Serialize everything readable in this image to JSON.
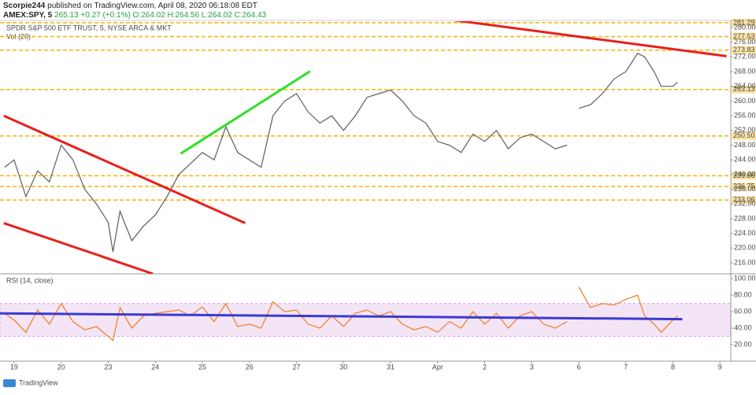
{
  "header": {
    "author": "Scorpie244",
    "published": "published on TradingView.com, April 08, 2020 06:18:08 EDT",
    "symbol": "AMEX:SPY, 5",
    "quote": "265.13 +0.27 (+0.1%) O:264.02 H:264.56 L:264.02 C:264.43"
  },
  "footer": {
    "brand": "TradingView"
  },
  "chart_data": [
    {
      "type": "line",
      "title": "SPDR S&P 500 ETF TRUST, 5, NYSE ARCA & MKT",
      "indicator": "Vol (20)",
      "xlim": [
        -0.3,
        15.23
      ],
      "ylim": [
        213,
        281.7
      ],
      "yticks": [
        {
          "value": 280,
          "label": "280.00"
        },
        {
          "value": 276,
          "label": "276.00"
        },
        {
          "value": 272,
          "label": "272.00"
        },
        {
          "value": 268,
          "label": "268.00"
        },
        {
          "value": 264,
          "label": "264.00"
        },
        {
          "value": 260,
          "label": "260.00"
        },
        {
          "value": 256,
          "label": "256.00"
        },
        {
          "value": 252,
          "label": "252.00"
        },
        {
          "value": 248,
          "label": "248.00"
        },
        {
          "value": 244,
          "label": "244.00"
        },
        {
          "value": 240,
          "label": "240.00"
        },
        {
          "value": 236,
          "label": "236.00"
        },
        {
          "value": 232,
          "label": "232.00"
        },
        {
          "value": 228,
          "label": "228.00"
        },
        {
          "value": 224,
          "label": "224.00"
        },
        {
          "value": 220,
          "label": "220.00"
        },
        {
          "value": 216,
          "label": "216.00"
        }
      ],
      "levels": [
        {
          "value": 281.29,
          "label": "281.29"
        },
        {
          "value": 277.53,
          "label": "277.53"
        },
        {
          "value": 273.83,
          "label": "273.83"
        },
        {
          "value": 263.13,
          "label": "263.13"
        },
        {
          "value": 250.5,
          "label": "250.50"
        },
        {
          "value": 239.66,
          "label": "239.66"
        },
        {
          "value": 236.75,
          "label": "236.75"
        },
        {
          "value": 233.06,
          "label": "233.06"
        }
      ],
      "level_color": "#f5b301",
      "trendlines": [
        {
          "color": "#e8201c",
          "x": [
            -0.22,
            4.91
          ],
          "y": [
            256,
            226.8
          ]
        },
        {
          "color": "#e8201c",
          "x": [
            -0.22,
            2.95
          ],
          "y": [
            226.8,
            213
          ]
        },
        {
          "color": "#2fe02a",
          "x": [
            3.54,
            6.29
          ],
          "y": [
            245.7,
            268.1
          ]
        },
        {
          "color": "#e8201c",
          "x": [
            9.22,
            15.14
          ],
          "y": [
            282.2,
            272.2
          ]
        }
      ],
      "x": [
        -0.2,
        0,
        0.25,
        0.5,
        0.75,
        1,
        1.25,
        1.5,
        1.75,
        2,
        2.1,
        2.25,
        2.5,
        2.75,
        3,
        3.25,
        3.5,
        3.75,
        4,
        4.25,
        4.5,
        4.75,
        5,
        5.25,
        5.5,
        5.75,
        6,
        6.25,
        6.5,
        6.75,
        7,
        7.25,
        7.5,
        7.75,
        8,
        8.25,
        8.5,
        8.75,
        9,
        9.25,
        9.5,
        9.75,
        10,
        10.25,
        10.5,
        10.75,
        11,
        11.25,
        11.5,
        11.75,
        11.9,
        12,
        12.25,
        12.5,
        12.75,
        13,
        13.25,
        13.4,
        13.6,
        13.75,
        14,
        14.1
      ],
      "series": [
        {
          "color": "#5d5d5d",
          "values": [
            242,
            244,
            234,
            241,
            238,
            248,
            244,
            236,
            232,
            227,
            219,
            230,
            222,
            226,
            229,
            234,
            240,
            243,
            246,
            244,
            253,
            246,
            244,
            242,
            256,
            260,
            262,
            257,
            254,
            256,
            252,
            256,
            261,
            262,
            263,
            260,
            256,
            254,
            249,
            248,
            246,
            251,
            249,
            252,
            247,
            250,
            251,
            249,
            247,
            248,
            null,
            258,
            259,
            262,
            266,
            268,
            273,
            272,
            268,
            264,
            264,
            265.13
          ]
        }
      ]
    },
    {
      "type": "line",
      "title": "RSI (14, close)",
      "xlim": [
        -0.3,
        15.23
      ],
      "ylim": [
        0,
        105
      ],
      "xticks": [
        {
          "value": 0,
          "label": "19"
        },
        {
          "value": 1,
          "label": "20"
        },
        {
          "value": 2,
          "label": "23"
        },
        {
          "value": 3,
          "label": "24"
        },
        {
          "value": 4,
          "label": "25"
        },
        {
          "value": 5,
          "label": "26"
        },
        {
          "value": 6,
          "label": "27"
        },
        {
          "value": 7,
          "label": "30"
        },
        {
          "value": 8,
          "label": "31"
        },
        {
          "value": 9,
          "label": "Apr"
        },
        {
          "value": 10,
          "label": "2"
        },
        {
          "value": 11,
          "label": "3"
        },
        {
          "value": 12,
          "label": "6"
        },
        {
          "value": 13,
          "label": "7"
        },
        {
          "value": 14,
          "label": "8"
        },
        {
          "value": 15,
          "label": "9"
        }
      ],
      "yticks": [
        {
          "value": 100,
          "label": "100.00"
        },
        {
          "value": 80,
          "label": "80.00"
        },
        {
          "value": 60,
          "label": "60.00"
        },
        {
          "value": 40,
          "label": "40.00"
        },
        {
          "value": 20,
          "label": "20.00"
        }
      ],
      "band": [
        30,
        70
      ],
      "band_color": "#9c27b0",
      "trendlines": [
        {
          "color": "#3a3ad6",
          "x": [
            -0.3,
            14.2
          ],
          "y": [
            58,
            51
          ]
        }
      ],
      "x": [
        -0.2,
        0,
        0.25,
        0.5,
        0.75,
        1,
        1.25,
        1.5,
        1.75,
        2,
        2.1,
        2.25,
        2.5,
        2.75,
        3,
        3.25,
        3.5,
        3.75,
        4,
        4.25,
        4.5,
        4.75,
        5,
        5.25,
        5.5,
        5.75,
        6,
        6.25,
        6.5,
        6.75,
        7,
        7.25,
        7.5,
        7.75,
        8,
        8.25,
        8.5,
        8.75,
        9,
        9.25,
        9.5,
        9.75,
        10,
        10.25,
        10.5,
        10.75,
        11,
        11.25,
        11.5,
        11.75,
        11.9,
        12,
        12.25,
        12.5,
        12.75,
        13,
        13.25,
        13.4,
        13.6,
        13.75,
        14,
        14.1
      ],
      "series": [
        {
          "color": "#f57c1f",
          "values": [
            58,
            50,
            35,
            62,
            45,
            70,
            48,
            38,
            42,
            30,
            25,
            65,
            40,
            55,
            58,
            60,
            62,
            55,
            66,
            48,
            70,
            42,
            45,
            40,
            72,
            60,
            62,
            45,
            40,
            55,
            42,
            58,
            62,
            55,
            60,
            45,
            38,
            42,
            35,
            48,
            40,
            60,
            45,
            58,
            40,
            55,
            60,
            45,
            40,
            48,
            null,
            90,
            65,
            70,
            68,
            75,
            80,
            55,
            45,
            35,
            50,
            55
          ]
        }
      ]
    }
  ]
}
